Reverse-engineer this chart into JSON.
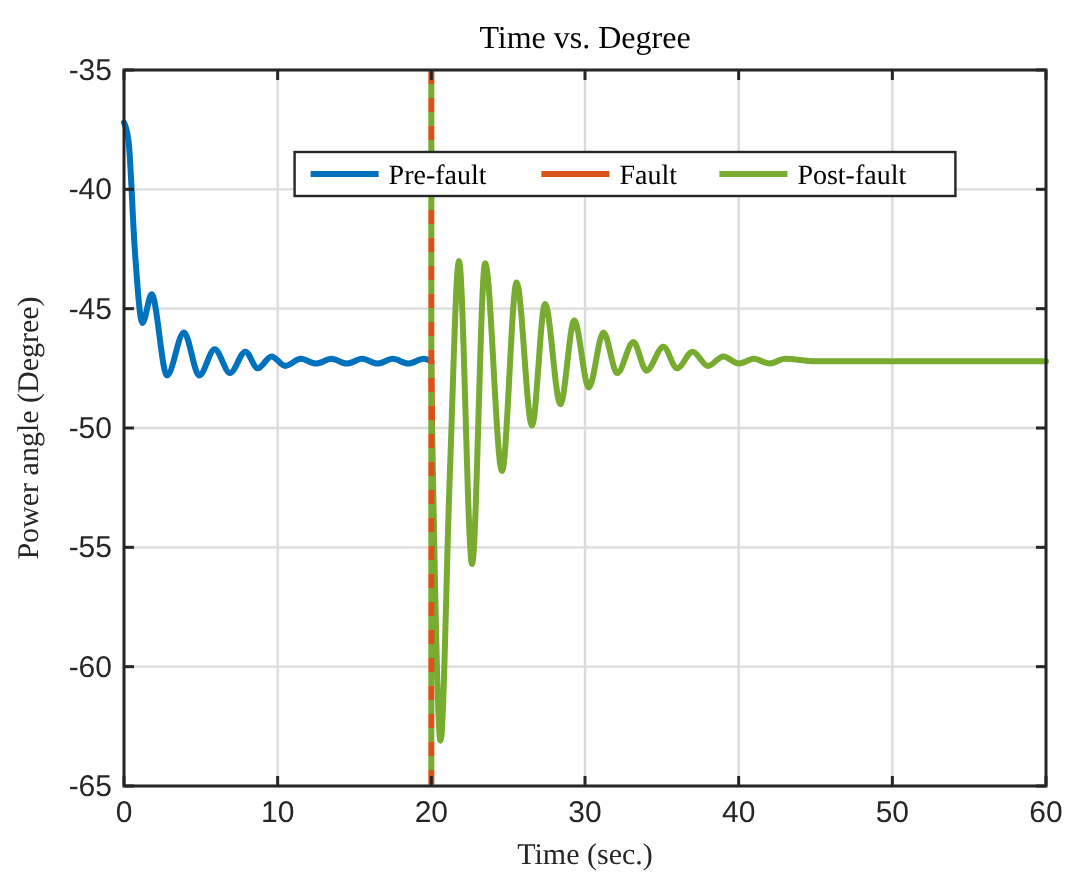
{
  "chart_data": {
    "type": "line",
    "title": "Time vs. Degree",
    "xlabel": "Time (sec.)",
    "ylabel": "Power angle (Degree)",
    "xlim": [
      0,
      60
    ],
    "xticks": [
      0,
      10,
      20,
      30,
      40,
      50,
      60
    ],
    "ylim": [
      -65,
      -35
    ],
    "yticks": [
      -65,
      -60,
      -55,
      -50,
      -45,
      -40,
      -35
    ],
    "grid": true,
    "legend": "top",
    "line_style": "solid",
    "marker": "none",
    "series": [
      {
        "name": "Pre-fault",
        "color": "#0072bd",
        "x": [
          0,
          0.3,
          0.7,
          1.2,
          1.8,
          2.8,
          3.9,
          4.9,
          5.9,
          6.9,
          7.9,
          8.7,
          9.6,
          10.5,
          11.5,
          12.5,
          13.5,
          14.5,
          15.5,
          16.5,
          17.5,
          18.5,
          19.5,
          20
        ],
        "values": [
          -37.2,
          -38,
          -42.5,
          -45.6,
          -44.4,
          -47.8,
          -46,
          -47.8,
          -46.7,
          -47.7,
          -46.8,
          -47.5,
          -47,
          -47.4,
          -47.1,
          -47.3,
          -47.1,
          -47.3,
          -47.1,
          -47.3,
          -47.1,
          -47.3,
          -47.1,
          -47.2
        ]
      },
      {
        "name": "Fault",
        "color": "#d95319",
        "x": [
          20,
          20.05
        ],
        "values": [
          -47.2,
          -50
        ]
      },
      {
        "name": "Post-fault",
        "color": "#77ac30",
        "x": [
          20.05,
          20.6,
          21.2,
          21.8,
          22.65,
          23.5,
          24.6,
          25.55,
          26.55,
          27.4,
          28.4,
          29.3,
          30.25,
          31.2,
          32.1,
          33.15,
          34,
          35.1,
          36,
          37,
          38,
          39,
          40,
          41,
          42,
          43,
          45,
          50,
          55,
          60
        ],
        "values": [
          -50,
          -63.1,
          -52,
          -43,
          -55.7,
          -43.1,
          -51.8,
          -43.9,
          -49.9,
          -44.8,
          -49,
          -45.5,
          -48.3,
          -46,
          -47.7,
          -46.4,
          -47.6,
          -46.6,
          -47.5,
          -46.8,
          -47.4,
          -47,
          -47.3,
          -47.1,
          -47.3,
          -47.1,
          -47.2,
          -47.2,
          -47.2,
          -47.2
        ]
      }
    ],
    "ref_lines": [
      {
        "axis": "x",
        "value": 20,
        "color": "#d95319",
        "line_style": "dashed"
      },
      {
        "axis": "x",
        "value": 20,
        "color": "#77ac30",
        "line_style": "dashed"
      }
    ]
  }
}
